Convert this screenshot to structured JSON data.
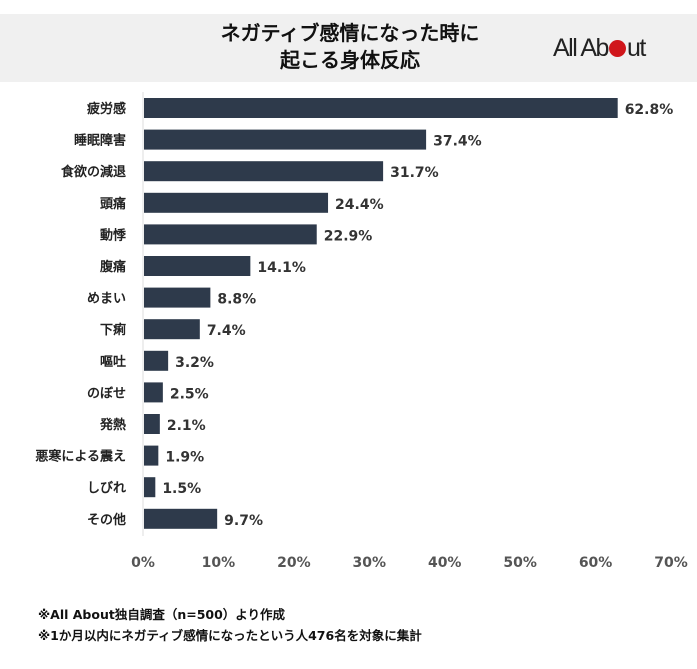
{
  "header": {
    "title_line1": "ネガティブ感情になった時に",
    "title_line2": "起こる身体反応",
    "logo": "All About"
  },
  "chart_data": {
    "type": "bar",
    "orientation": "horizontal",
    "categories": [
      "疲労感",
      "睡眠障害",
      "食欲の減退",
      "頭痛",
      "動悸",
      "腹痛",
      "めまい",
      "下痢",
      "嘔吐",
      "のぼせ",
      "発熱",
      "悪寒による震え",
      "しびれ",
      "その他"
    ],
    "values": [
      62.8,
      37.4,
      31.7,
      24.4,
      22.9,
      14.1,
      8.8,
      7.4,
      3.2,
      2.5,
      2.1,
      1.9,
      1.5,
      9.7
    ],
    "data_labels": [
      "62.8%",
      "37.4%",
      "31.7%",
      "24.4%",
      "22.9%",
      "14.1%",
      "8.8%",
      "7.4%",
      "3.2%",
      "2.5%",
      "2.1%",
      "1.9%",
      "1.5%",
      "9.7%"
    ],
    "xlim": [
      0,
      70
    ],
    "xticks": [
      "0%",
      "10%",
      "20%",
      "30%",
      "40%",
      "50%",
      "60%",
      "70%"
    ],
    "bar_color": "#2e3a4b",
    "grid": false
  },
  "footnotes": [
    "※All About独自調査（n=500）より作成",
    "※1か月以内にネガティブ感情になったという人476名を対象に集計"
  ]
}
